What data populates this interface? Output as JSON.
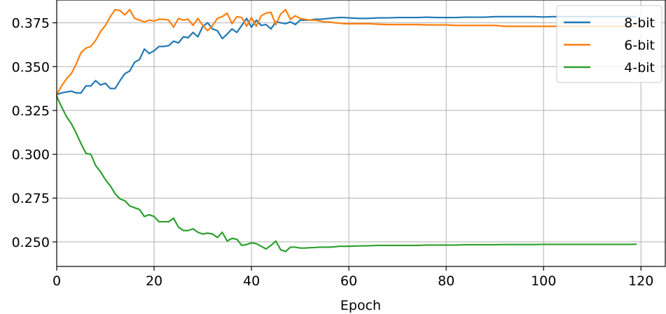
{
  "chart_data": {
    "type": "line",
    "title": "",
    "xlabel": "Epoch",
    "ylabel": "",
    "xlim": [
      0,
      125
    ],
    "ylim": [
      0.236,
      0.388
    ],
    "xticks": [
      0,
      20,
      40,
      60,
      80,
      100,
      120
    ],
    "yticks": [
      0.25,
      0.275,
      0.3,
      0.325,
      0.35,
      0.375
    ],
    "xtick_labels": [
      "0",
      "20",
      "40",
      "60",
      "80",
      "100",
      "120"
    ],
    "ytick_labels": [
      "0.250",
      "0.275",
      "0.300",
      "0.325",
      "0.350",
      "0.375"
    ],
    "grid": true,
    "legend_position": "top-right",
    "series": [
      {
        "name": "8-bit",
        "color": "#1f77b4",
        "x": [
          0,
          1,
          2,
          3,
          4,
          5,
          6,
          7,
          8,
          9,
          10,
          11,
          12,
          13,
          14,
          15,
          16,
          17,
          18,
          19,
          20,
          21,
          22,
          23,
          24,
          25,
          26,
          27,
          28,
          29,
          30,
          31,
          32,
          33,
          34,
          35,
          36,
          37,
          38,
          39,
          40,
          41,
          42,
          43,
          44,
          45,
          46,
          47,
          48,
          49,
          50,
          51,
          52,
          53,
          54,
          55,
          56,
          57,
          58,
          59,
          60,
          62,
          64,
          66,
          68,
          70,
          72,
          74,
          76,
          78,
          80,
          82,
          84,
          86,
          88,
          90,
          92,
          94,
          96,
          98,
          100,
          102,
          104,
          106,
          108,
          110,
          112,
          114,
          116,
          118,
          119
        ],
        "y": [
          0.334,
          0.335,
          0.3355,
          0.336,
          0.335,
          0.335,
          0.339,
          0.339,
          0.342,
          0.3395,
          0.3405,
          0.3375,
          0.3375,
          0.342,
          0.346,
          0.3475,
          0.3525,
          0.354,
          0.36,
          0.3575,
          0.359,
          0.3615,
          0.3615,
          0.362,
          0.3645,
          0.3635,
          0.367,
          0.3665,
          0.3695,
          0.367,
          0.373,
          0.375,
          0.3715,
          0.3705,
          0.366,
          0.3685,
          0.3715,
          0.3695,
          0.3735,
          0.3775,
          0.3725,
          0.3765,
          0.3735,
          0.374,
          0.3715,
          0.3755,
          0.375,
          0.3745,
          0.3755,
          0.374,
          0.3765,
          0.3765,
          0.3765,
          0.377,
          0.377,
          0.3772,
          0.3775,
          0.3778,
          0.378,
          0.378,
          0.3778,
          0.3775,
          0.3775,
          0.3778,
          0.3778,
          0.378,
          0.378,
          0.378,
          0.3782,
          0.378,
          0.378,
          0.378,
          0.3782,
          0.3782,
          0.3782,
          0.3785,
          0.3785,
          0.3785,
          0.3785,
          0.3785,
          0.3783,
          0.3785,
          0.3785,
          0.3785,
          0.3785,
          0.3785,
          0.3785,
          0.3785,
          0.3785,
          0.3785,
          0.3785
        ]
      },
      {
        "name": "6-bit",
        "color": "#ff7f0e",
        "x": [
          0,
          1,
          2,
          3,
          4,
          5,
          6,
          7,
          8,
          9,
          10,
          11,
          12,
          13,
          14,
          15,
          16,
          17,
          18,
          19,
          20,
          21,
          22,
          23,
          24,
          25,
          26,
          27,
          28,
          29,
          30,
          31,
          32,
          33,
          34,
          35,
          36,
          37,
          38,
          39,
          40,
          41,
          42,
          43,
          44,
          45,
          46,
          47,
          48,
          49,
          50,
          51,
          52,
          53,
          54,
          55,
          56,
          57,
          58,
          59,
          60,
          62,
          64,
          66,
          68,
          70,
          72,
          74,
          76,
          78,
          80,
          82,
          84,
          86,
          88,
          90,
          92,
          94,
          96,
          98,
          100,
          102,
          104,
          106,
          108,
          110,
          112,
          114,
          116,
          118,
          119
        ],
        "y": [
          0.334,
          0.339,
          0.343,
          0.346,
          0.3515,
          0.358,
          0.3605,
          0.3615,
          0.365,
          0.37,
          0.3735,
          0.3785,
          0.3825,
          0.382,
          0.3795,
          0.3825,
          0.3775,
          0.3765,
          0.3755,
          0.3765,
          0.376,
          0.377,
          0.377,
          0.3765,
          0.3725,
          0.3775,
          0.3765,
          0.377,
          0.3735,
          0.3775,
          0.3735,
          0.3705,
          0.3735,
          0.3775,
          0.3785,
          0.3805,
          0.3745,
          0.3785,
          0.378,
          0.373,
          0.378,
          0.373,
          0.379,
          0.3805,
          0.381,
          0.374,
          0.38,
          0.3825,
          0.377,
          0.379,
          0.3775,
          0.377,
          0.3765,
          0.3765,
          0.376,
          0.3755,
          0.3755,
          0.375,
          0.3748,
          0.3745,
          0.3745,
          0.3745,
          0.3745,
          0.3742,
          0.374,
          0.374,
          0.374,
          0.374,
          0.3738,
          0.3738,
          0.3738,
          0.3735,
          0.3735,
          0.3735,
          0.3735,
          0.3735,
          0.373,
          0.373,
          0.373,
          0.373,
          0.373,
          0.373,
          0.373,
          0.373,
          0.373,
          0.373,
          0.373,
          0.373,
          0.373,
          0.373,
          0.373
        ]
      },
      {
        "name": "4-bit",
        "color": "#2ca02c",
        "x": [
          0,
          1,
          2,
          3,
          4,
          5,
          6,
          7,
          8,
          9,
          10,
          11,
          12,
          13,
          14,
          15,
          16,
          17,
          18,
          19,
          20,
          21,
          22,
          23,
          24,
          25,
          26,
          27,
          28,
          29,
          30,
          31,
          32,
          33,
          34,
          35,
          36,
          37,
          38,
          39,
          40,
          41,
          42,
          43,
          44,
          45,
          46,
          47,
          48,
          49,
          50,
          51,
          52,
          53,
          54,
          55,
          56,
          57,
          58,
          59,
          60,
          62,
          64,
          66,
          68,
          70,
          72,
          74,
          76,
          78,
          80,
          82,
          84,
          86,
          88,
          90,
          92,
          94,
          96,
          98,
          100,
          102,
          104,
          106,
          108,
          110,
          112,
          114,
          116,
          118,
          119
        ],
        "y": [
          0.333,
          0.327,
          0.3215,
          0.3175,
          0.312,
          0.306,
          0.3005,
          0.3,
          0.2935,
          0.29,
          0.2855,
          0.282,
          0.2775,
          0.2745,
          0.2735,
          0.2705,
          0.2695,
          0.2685,
          0.2645,
          0.2655,
          0.2645,
          0.2615,
          0.2615,
          0.2615,
          0.2635,
          0.2585,
          0.2565,
          0.2565,
          0.2575,
          0.2555,
          0.2545,
          0.255,
          0.2545,
          0.2525,
          0.2555,
          0.2505,
          0.252,
          0.2515,
          0.248,
          0.2485,
          0.2495,
          0.249,
          0.2475,
          0.246,
          0.248,
          0.2505,
          0.2455,
          0.2445,
          0.247,
          0.247,
          0.2465,
          0.2465,
          0.2467,
          0.2468,
          0.247,
          0.247,
          0.247,
          0.2472,
          0.2475,
          0.2475,
          0.2475,
          0.2477,
          0.2478,
          0.248,
          0.248,
          0.248,
          0.248,
          0.248,
          0.2482,
          0.2482,
          0.2482,
          0.2482,
          0.2484,
          0.2484,
          0.2484,
          0.2484,
          0.2485,
          0.2485,
          0.2485,
          0.2485,
          0.2486,
          0.2486,
          0.2486,
          0.2486,
          0.2486,
          0.2486,
          0.2486,
          0.2486,
          0.2486,
          0.2486,
          0.2487
        ]
      }
    ]
  }
}
